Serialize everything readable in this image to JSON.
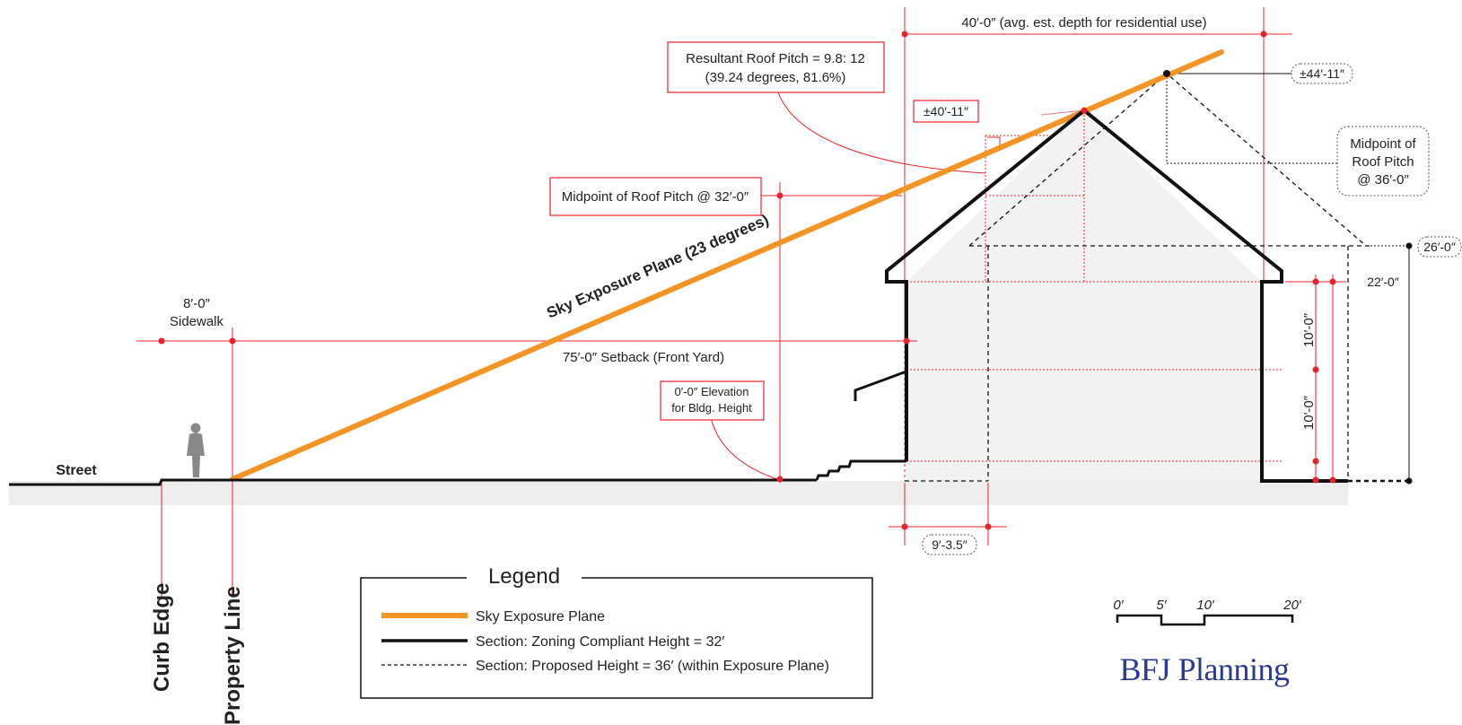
{
  "labels": {
    "top_depth": "40′-0″ (avg. est. depth for residential use)",
    "roof_pitch_line1": "Resultant Roof Pitch = 9.8: 12",
    "roof_pitch_line2": "(39.24 degrees, 81.6%)",
    "height_44": "±44′-11″",
    "height_40": "±40′-11″",
    "midpoint_36_line1": "Midpoint of",
    "midpoint_36_line2": "Roof Pitch",
    "midpoint_36_line3": "@ 36′-0″",
    "midpoint_32": "Midpoint of Roof Pitch @ 32′-0″",
    "sky_plane": "Sky Exposure Plane (23 degrees)",
    "height_26": "26′-0″",
    "height_22": "22′-0″",
    "sidewalk_dim": "8′-0″",
    "sidewalk": "Sidewalk",
    "setback": "75′-0″ Setback (Front Yard)",
    "story_upper": "10′-0″",
    "story_lower": "10′-0″",
    "elevation_line1": "0′-0″ Elevation",
    "elevation_line2": "for Bldg. Height",
    "street": "Street",
    "offset_dim": "9′-3.5″",
    "curb_edge": "Curb Edge",
    "property_line": "Property Line"
  },
  "legend": {
    "title": "Legend",
    "items": [
      {
        "label": "Sky Exposure Plane",
        "color": "#f39425",
        "style": "solid-thick"
      },
      {
        "label": "Section: Zoning Compliant Height = 32′",
        "color": "#111111",
        "style": "solid"
      },
      {
        "label": "Section: Proposed Height = 36′ (within Exposure Plane)",
        "color": "#111111",
        "style": "dashed"
      }
    ]
  },
  "scale_bar": {
    "ticks": [
      "0′",
      "5′",
      "10′",
      "20′"
    ]
  },
  "brand": {
    "name": "BFJ Planning",
    "color": "#2b3990"
  },
  "colors": {
    "sky_plane": "#f39425",
    "dimension": "#e8232c",
    "section": "#111111",
    "ground_fill": "#eeeeee"
  }
}
